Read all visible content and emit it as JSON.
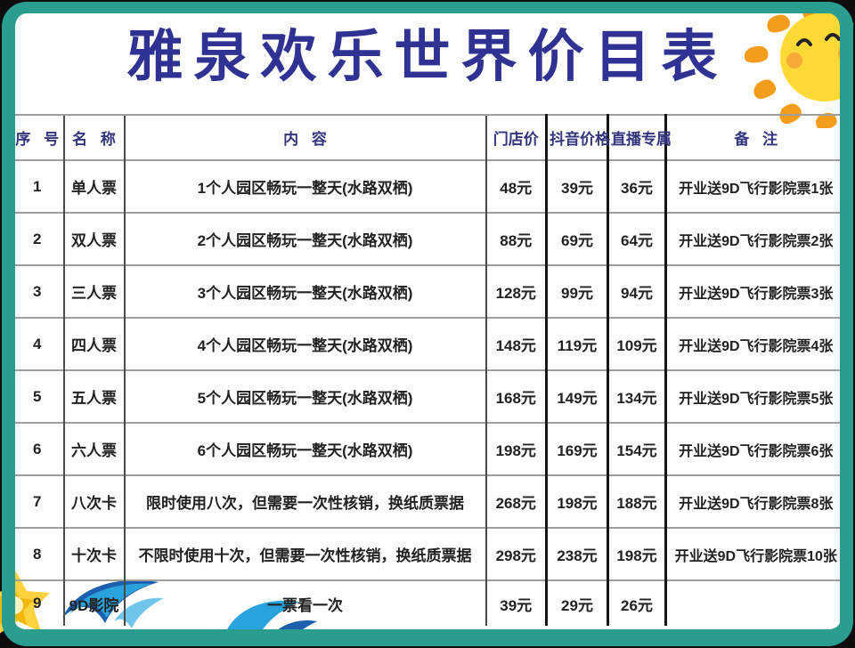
{
  "title": "雅泉欢乐世界价目表",
  "colors": {
    "frame_green": "#2a9d8f",
    "title_navy": "#2f3292",
    "header_navy": "#33357d",
    "body_text": "#222222",
    "sun_yellow": "#ffd935",
    "sun_orange": "#f49d1d",
    "splash_light_blue": "#2aa3dc",
    "splash_deep_blue": "#1b5fae",
    "splash_yellow": "#ffd23f"
  },
  "icons": {
    "sun": "smiling-sun-icon",
    "splash": "water-splash-icon"
  },
  "table": {
    "headers": [
      "序 号",
      "名 称",
      "内 容",
      "门店价",
      "抖音价格",
      "直播专属",
      "备 注"
    ],
    "rows": [
      [
        "1",
        "单人票",
        "1个人园区畅玩一整天(水路双栖)",
        "48元",
        "39元",
        "36元",
        "开业送9D飞行影院票1张"
      ],
      [
        "2",
        "双人票",
        "2个人园区畅玩一整天(水路双栖)",
        "88元",
        "69元",
        "64元",
        "开业送9D飞行影院票2张"
      ],
      [
        "3",
        "三人票",
        "3个人园区畅玩一整天(水路双栖)",
        "128元",
        "99元",
        "94元",
        "开业送9D飞行影院票3张"
      ],
      [
        "4",
        "四人票",
        "4个人园区畅玩一整天(水路双栖)",
        "148元",
        "119元",
        "109元",
        "开业送9D飞行影院票4张"
      ],
      [
        "5",
        "五人票",
        "5个人园区畅玩一整天(水路双栖)",
        "168元",
        "149元",
        "134元",
        "开业送9D飞行影院票5张"
      ],
      [
        "6",
        "六人票",
        "6个人园区畅玩一整天(水路双栖)",
        "198元",
        "169元",
        "154元",
        "开业送9D飞行影院票6张"
      ],
      [
        "7",
        "八次卡",
        "限时使用八次，但需要一次性核销，换纸质票据",
        "268元",
        "198元",
        "188元",
        "开业送9D飞行影院票8张"
      ],
      [
        "8",
        "十次卡",
        "不限时使用十次，但需要一次性核销，换纸质票据",
        "298元",
        "238元",
        "198元",
        "开业送9D飞行影院票10张"
      ],
      [
        "9",
        "9D影院",
        "一票看一次",
        "39元",
        "29元",
        "26元",
        ""
      ]
    ]
  }
}
